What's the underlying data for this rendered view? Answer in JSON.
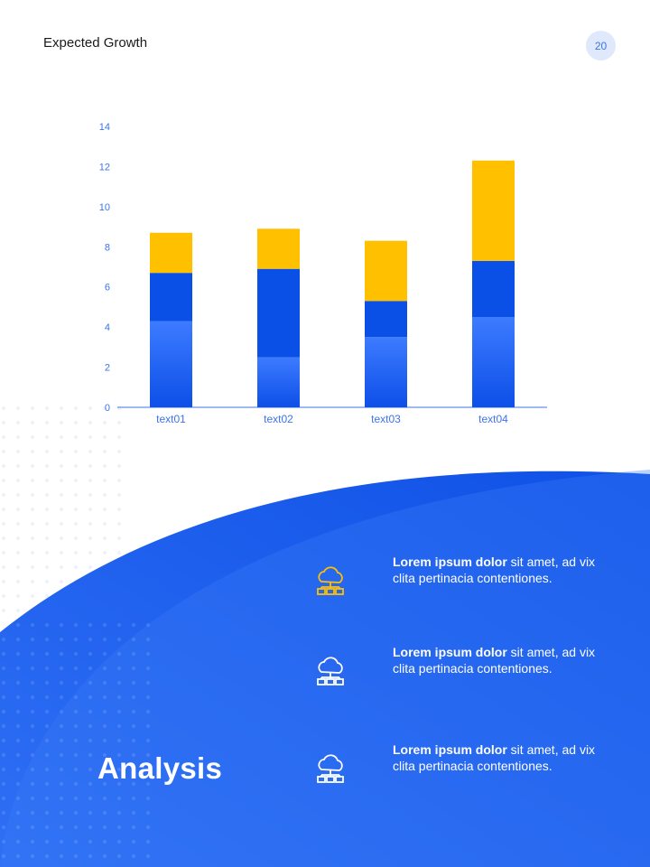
{
  "header": {
    "title": "Expected Growth",
    "page_number": "20"
  },
  "chart_data": {
    "type": "bar",
    "stacked": true,
    "categories": [
      "text01",
      "text02",
      "text03",
      "text04"
    ],
    "series": [
      {
        "values": [
          4.3,
          2.5,
          3.5,
          4.5
        ],
        "color": "#3d7bff"
      },
      {
        "values": [
          2.4,
          4.4,
          1.8,
          2.8
        ],
        "color": "#0a4fe6"
      },
      {
        "values": [
          2.0,
          2.0,
          3.0,
          5.0
        ],
        "color": "#ffc000"
      }
    ],
    "yticks": [
      0,
      2,
      4,
      6,
      8,
      10,
      12,
      14
    ],
    "ylim": [
      0,
      14
    ],
    "grid": false,
    "legend": false,
    "axis_color": "#3b74ea"
  },
  "analysis": {
    "title": "Analysis",
    "features": [
      {
        "bold": "Lorem ipsum dolor",
        "rest": " sit amet, ad vix clita pertinacia contentiones.",
        "icon": "cloud-network-icon",
        "icon_color": "#ffc000"
      },
      {
        "bold": "Lorem ipsum dolor",
        "rest": " sit amet, ad vix clita pertinacia contentiones.",
        "icon": "cloud-network-icon",
        "icon_color": "#ffffff"
      },
      {
        "bold": "Lorem ipsum dolor",
        "rest": " sit amet, ad vix clita pertinacia contentiones.",
        "icon": "cloud-network-icon",
        "icon_color": "#ffffff"
      }
    ]
  },
  "colors": {
    "accent": "#1f5ff0",
    "yellow": "#ffc000"
  }
}
